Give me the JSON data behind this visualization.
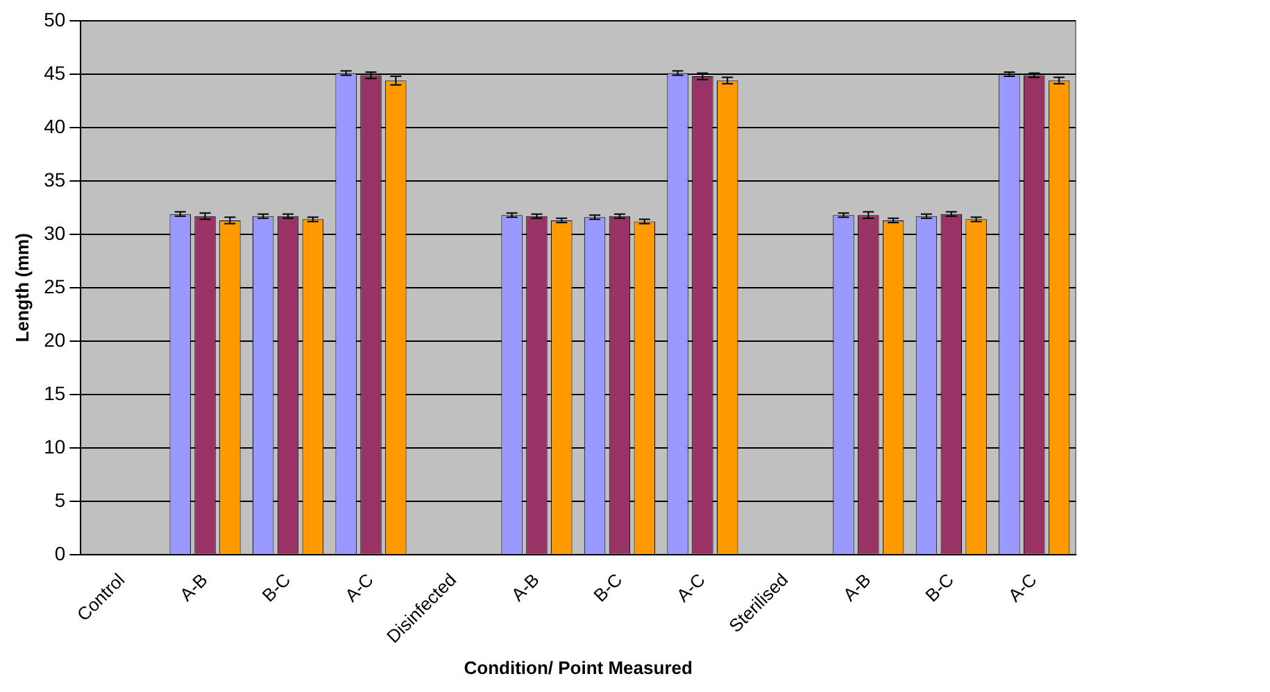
{
  "chart_data": {
    "type": "bar",
    "xlabel": "Condition/ Point Measured",
    "ylabel": "Length (mm)",
    "categories": [
      "Control",
      "A-B",
      "B-C",
      "A-C",
      "Disinfected",
      "A-B",
      "B-C",
      "A-C",
      "Sterilised",
      "A-B",
      "B-C",
      "A-C"
    ],
    "series": [
      {
        "color": "#9999ff",
        "values": [
          null,
          31.9,
          31.7,
          45.1,
          null,
          31.8,
          31.6,
          45.1,
          null,
          31.8,
          31.7,
          45.0
        ],
        "errors": [
          null,
          0.2,
          0.2,
          0.2,
          null,
          0.2,
          0.2,
          0.2,
          null,
          0.2,
          0.2,
          0.2
        ]
      },
      {
        "color": "#993366",
        "values": [
          null,
          31.7,
          31.7,
          44.9,
          null,
          31.7,
          31.7,
          44.8,
          null,
          31.8,
          31.9,
          44.9
        ],
        "errors": [
          null,
          0.3,
          0.2,
          0.3,
          null,
          0.2,
          0.2,
          0.3,
          null,
          0.3,
          0.2,
          0.2
        ]
      },
      {
        "color": "#ff9900",
        "values": [
          null,
          31.3,
          31.4,
          44.4,
          null,
          31.3,
          31.2,
          44.4,
          null,
          31.3,
          31.4,
          44.4
        ],
        "errors": [
          null,
          0.3,
          0.2,
          0.4,
          null,
          0.2,
          0.2,
          0.3,
          null,
          0.2,
          0.2,
          0.3
        ]
      }
    ],
    "ylim": [
      0,
      50
    ],
    "yticks": [
      0,
      5,
      10,
      15,
      20,
      25,
      30,
      35,
      40,
      45,
      50
    ],
    "grid": "y"
  }
}
